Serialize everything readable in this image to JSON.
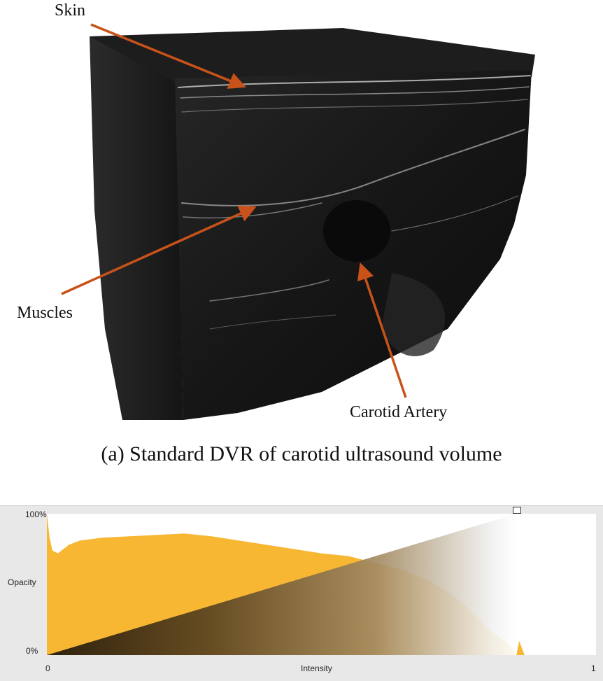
{
  "figure_a": {
    "labels": {
      "skin": "Skin",
      "muscles": "Muscles",
      "carotid": "Carotid Artery"
    },
    "caption": "(a) Standard DVR of carotid ultrasound volume",
    "colors": {
      "arrow": "#c8521a",
      "volume": "#141414"
    }
  },
  "transfer_function_editor": {
    "y_labels": {
      "top": "100%",
      "middle": "Opacity",
      "bottom": "0%"
    },
    "x_labels": {
      "left": "0",
      "center": "Intensity",
      "right": "1"
    },
    "colors": {
      "histogram": "#f7b733",
      "panel": "#e8e8e8",
      "ramp_dark": "#2a1e0e",
      "ramp_light": "#ffffff"
    }
  },
  "chart_data": {
    "type": "area",
    "xlabel": "Intensity",
    "ylabel": "Opacity",
    "xlim": [
      0,
      1
    ],
    "ylim": [
      0,
      1
    ],
    "y_ticks": [
      "0%",
      "100%"
    ],
    "x_ticks": [
      "0",
      "1"
    ],
    "grid": false,
    "series": [
      {
        "x": [
          0.0,
          0.005,
          0.01,
          0.02,
          0.04,
          0.06,
          0.1,
          0.15,
          0.2,
          0.25,
          0.3,
          0.35,
          0.4,
          0.45,
          0.5,
          0.55,
          0.6,
          0.65,
          0.7,
          0.74,
          0.77,
          0.8,
          0.82,
          0.84,
          0.855,
          0.86,
          0.87,
          0.88
        ],
        "values": [
          1.0,
          0.83,
          0.74,
          0.72,
          0.78,
          0.81,
          0.83,
          0.84,
          0.85,
          0.86,
          0.84,
          0.81,
          0.78,
          0.75,
          0.72,
          0.7,
          0.65,
          0.6,
          0.52,
          0.42,
          0.32,
          0.2,
          0.14,
          0.08,
          0.0,
          0.1,
          0.0,
          0.0
        ]
      },
      {
        "x": [
          0.0,
          0.855
        ],
        "values": [
          0.0,
          1.0
        ]
      }
    ]
  }
}
